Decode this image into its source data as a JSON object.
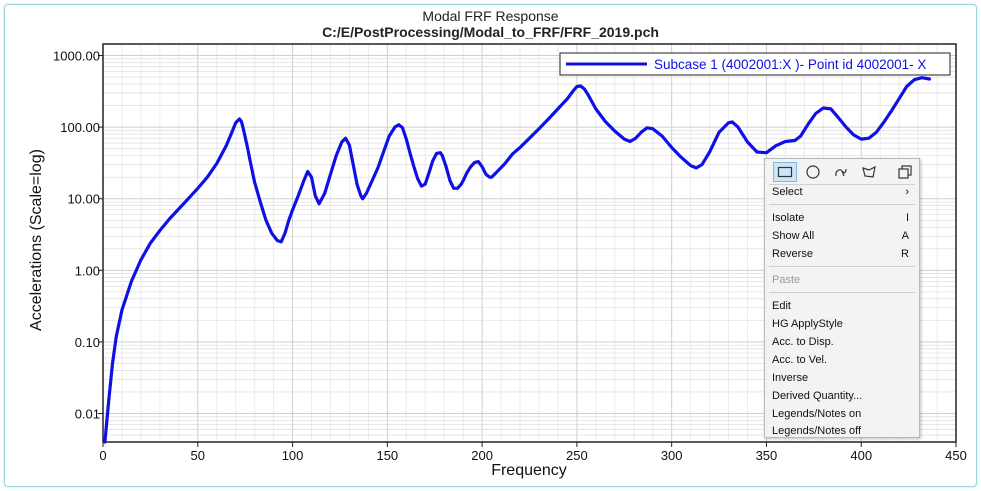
{
  "window": {
    "title": "Modal FRF Response",
    "subtitle": "C:/E/PostProcessing/Modal_to_FRF/FRF_2019.pch"
  },
  "colors": {
    "series": "#1010e6",
    "frame_border": "#9fd4e0",
    "grid": "#d8d8d8"
  },
  "chart_data": {
    "type": "line",
    "title": "Modal FRF Response",
    "subtitle": "C:/E/PostProcessing/Modal_to_FRF/FRF_2019.pch",
    "xlabel": "Frequency",
    "ylabel": "Accelerations (Scale=log)",
    "xlim": [
      0,
      450
    ],
    "ylim": [
      0.004,
      1450
    ],
    "yscale": "log",
    "grid": true,
    "legend_position": "top-right",
    "x_ticks": [
      "0",
      "50",
      "100",
      "150",
      "200",
      "250",
      "300",
      "350",
      "400",
      "450"
    ],
    "y_ticks": [
      "0.01",
      "0.10",
      "1.00",
      "10.00",
      "100.00",
      "1000.00"
    ],
    "series": [
      {
        "name": "Subcase 1 (4002001:X )- Point id 4002001- X",
        "x": [
          1,
          3,
          5,
          7,
          10,
          15,
          20,
          25,
          30,
          35,
          40,
          45,
          50,
          55,
          60,
          65,
          68,
          70,
          72,
          73,
          74,
          76,
          78,
          80,
          83,
          86,
          89,
          92,
          94,
          96,
          98,
          100,
          103,
          106,
          108,
          110,
          112,
          114,
          117,
          120,
          123,
          126,
          128,
          130,
          132,
          134,
          136,
          137,
          139,
          142,
          145,
          148,
          151,
          154,
          156,
          158,
          160,
          162,
          164,
          166,
          168,
          170,
          172,
          174,
          176,
          178,
          179,
          181,
          183,
          185,
          187,
          189,
          190,
          192,
          194,
          196,
          198,
          200,
          202,
          204,
          205,
          208,
          212,
          216,
          220,
          225,
          230,
          235,
          240,
          245,
          248,
          250,
          252,
          254,
          256,
          260,
          265,
          270,
          275,
          278,
          281,
          284,
          287,
          290,
          295,
          300,
          305,
          310,
          313,
          316,
          320,
          325,
          330,
          332,
          335,
          340,
          345,
          350,
          355,
          360,
          365,
          368,
          372,
          376,
          380,
          384,
          388,
          392,
          396,
          400,
          404,
          408,
          412,
          416,
          420,
          424,
          428,
          432,
          436
        ],
        "values": [
          0.004,
          0.015,
          0.05,
          0.12,
          0.28,
          0.7,
          1.4,
          2.4,
          3.6,
          5.2,
          7.2,
          10,
          14,
          20,
          31,
          55,
          85,
          115,
          130,
          120,
          95,
          55,
          30,
          17,
          9,
          5,
          3.3,
          2.6,
          2.5,
          3.3,
          5,
          7,
          11,
          18,
          24,
          20,
          11,
          8.5,
          12,
          22,
          40,
          62,
          70,
          56,
          30,
          16,
          11,
          10,
          12,
          18,
          27,
          45,
          75,
          100,
          108,
          98,
          68,
          43,
          28,
          19,
          15,
          16,
          23,
          34,
          43,
          44,
          40,
          28,
          18,
          14,
          14,
          16,
          18,
          23,
          28,
          32,
          33,
          28,
          22,
          20,
          20,
          24,
          31,
          42,
          52,
          70,
          95,
          130,
          180,
          250,
          320,
          370,
          375,
          340,
          280,
          180,
          120,
          88,
          68,
          63,
          70,
          85,
          98,
          95,
          75,
          52,
          38,
          29,
          27,
          30,
          45,
          85,
          115,
          118,
          100,
          62,
          45,
          44,
          55,
          63,
          65,
          75,
          110,
          155,
          185,
          180,
          135,
          100,
          78,
          68,
          70,
          85,
          118,
          170,
          250,
          370,
          460,
          490,
          470
        ]
      }
    ]
  },
  "context_menu": {
    "tools": [
      "select-rectangle-icon",
      "select-circle-icon",
      "select-freehand-icon",
      "select-polygon-icon",
      "copy-icon"
    ],
    "items": [
      {
        "label": "Select",
        "shortcut": "›"
      },
      {
        "label": "Isolate",
        "shortcut": "I"
      },
      {
        "label": "Show All",
        "shortcut": "A"
      },
      {
        "label": "Reverse",
        "shortcut": "R"
      },
      {
        "label": "Paste",
        "shortcut": ""
      },
      {
        "label": "Edit",
        "shortcut": ""
      },
      {
        "label": "HG ApplyStyle",
        "shortcut": ""
      },
      {
        "label": "Acc. to Disp.",
        "shortcut": ""
      },
      {
        "label": "Acc. to Vel.",
        "shortcut": ""
      },
      {
        "label": "Inverse",
        "shortcut": ""
      },
      {
        "label": "Derived Quantity...",
        "shortcut": ""
      },
      {
        "label": "Legends/Notes on",
        "shortcut": ""
      },
      {
        "label": "Legends/Notes off",
        "shortcut": ""
      }
    ]
  }
}
